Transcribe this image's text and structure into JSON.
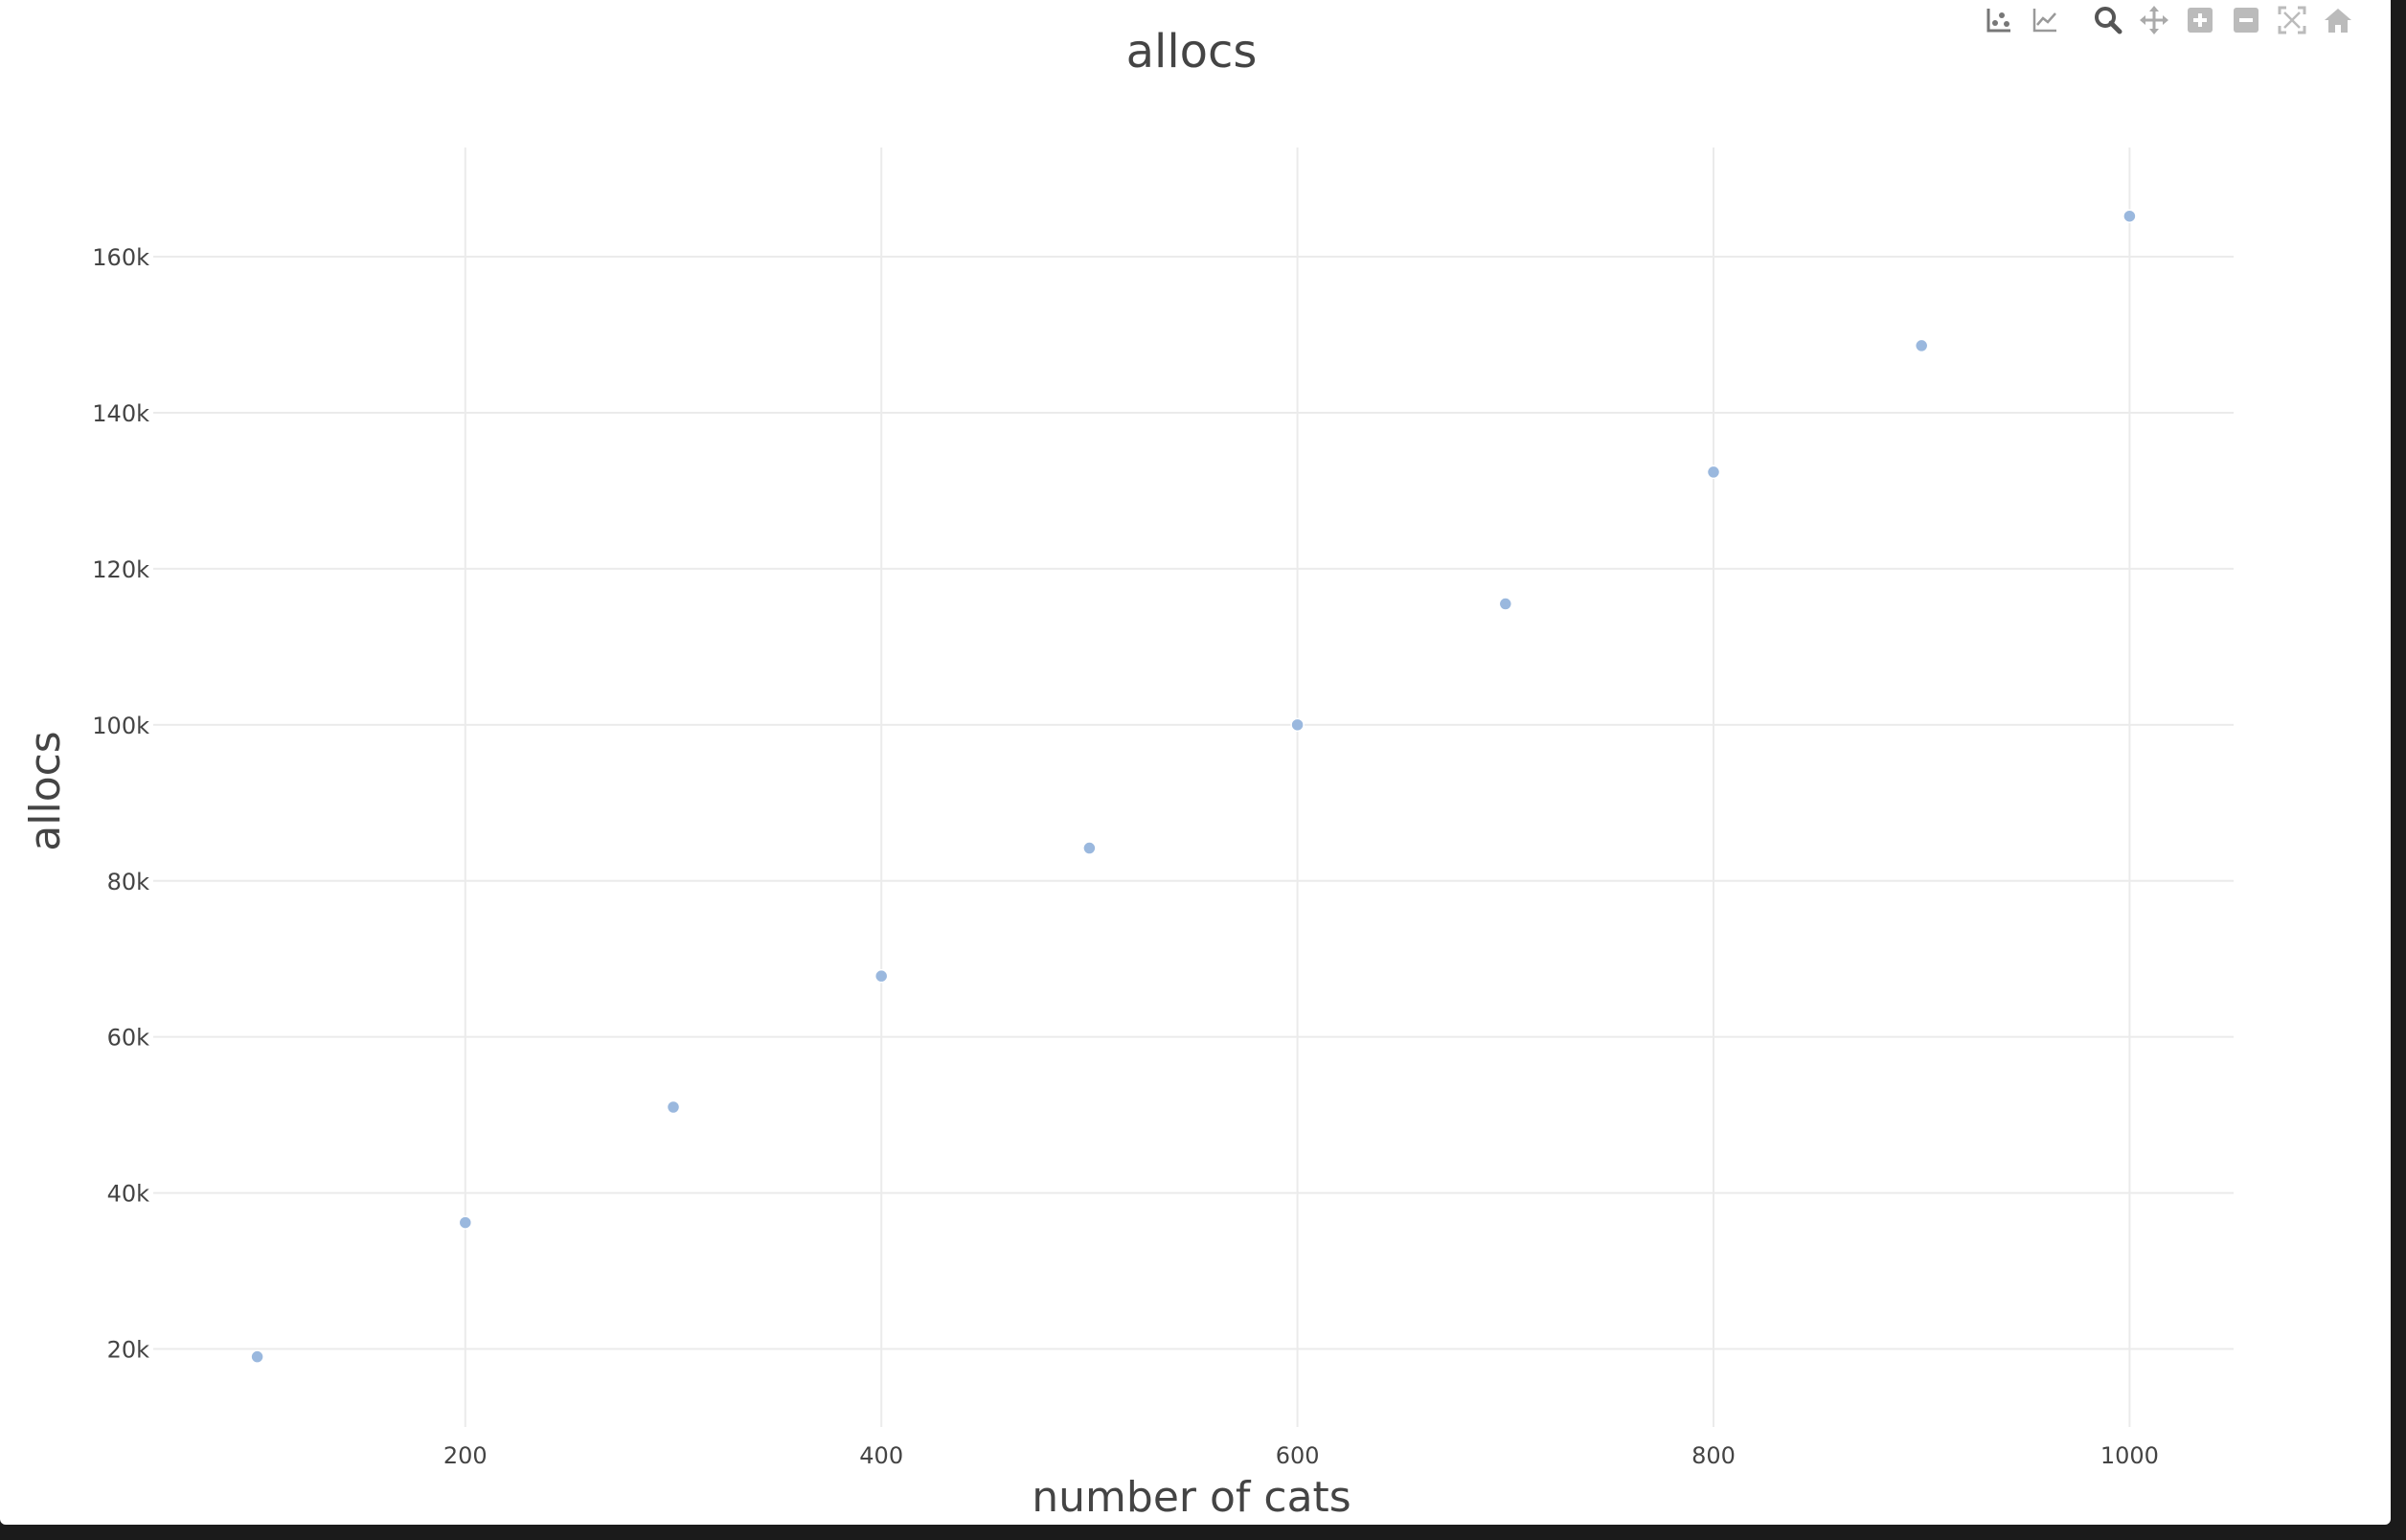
{
  "chart_data": {
    "type": "scatter",
    "title": "allocs",
    "xlabel": "number of cats",
    "ylabel": "allocs",
    "x": [
      100,
      200,
      300,
      400,
      500,
      600,
      700,
      800,
      900,
      1000
    ],
    "y": [
      19000,
      36200,
      51000,
      67800,
      84200,
      100000,
      115500,
      132400,
      148600,
      165200
    ],
    "xlim": [
      50,
      1050
    ],
    "ylim": [
      10000,
      174000
    ],
    "xticks": [
      200,
      400,
      600,
      800,
      1000
    ],
    "xtick_labels": [
      "200",
      "400",
      "600",
      "800",
      "1000"
    ],
    "yticks": [
      20000,
      40000,
      60000,
      80000,
      100000,
      120000,
      140000,
      160000
    ],
    "ytick_labels": [
      "20k",
      "40k",
      "60k",
      "80k",
      "100k",
      "120k",
      "140k",
      "160k"
    ],
    "grid": true,
    "marker_color": "#9ab8de"
  },
  "modebar": {
    "icons": [
      "scatter-compare-icon",
      "line-compare-icon",
      "zoom-icon",
      "pan-icon",
      "zoom-in-icon",
      "zoom-out-icon",
      "autoscale-icon",
      "reset-axes-icon"
    ]
  }
}
